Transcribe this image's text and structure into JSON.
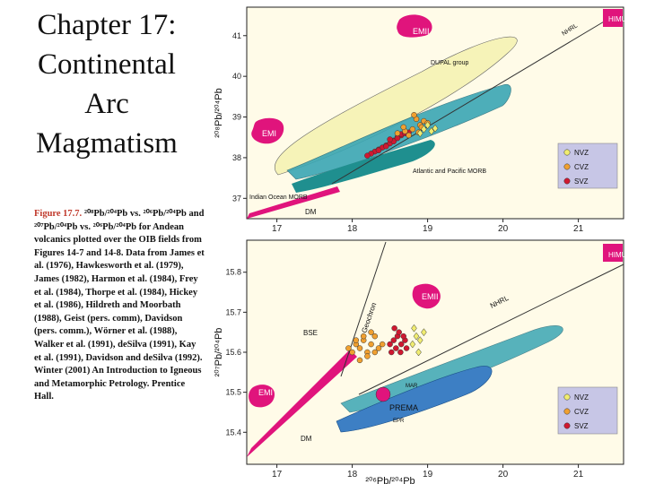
{
  "slide": {
    "title_lines": [
      "Chapter 17:",
      "Continental",
      "Arc",
      "Magmatism"
    ],
    "caption_lead": "Figure 17.7.",
    "caption_body": " ²⁰⁸Pb/²⁰⁴Pb vs. ²⁰⁶Pb/²⁰⁴Pb and ²⁰⁷Pb/²⁰⁴Pb vs. ²⁰⁶Pb/²⁰⁴Pb for Andean volcanics plotted over the OIB fields from Figures 14-7 and 14-8.  Data from James et al. (1976), Hawkesworth et al. (1979), James (1982), Harmon et al. (1984), Frey et al. (1984), Thorpe et al. (1984), Hickey et al. (1986), Hildreth and Moorbath (1988), Geist (pers. comm), Davidson (pers. comm.), Wörner et al. (1988), Walker et al. (1991), deSilva (1991), Kay et al. (1991), Davidson and deSilva (1992).  Winter (2001) An Introduction to Igneous and Metamorphic Petrology. Prentice Hall."
  },
  "colors": {
    "magenta": "#e0147c",
    "yellow_field": "#f6f3b8",
    "teal_field": "#3aa6b4",
    "dark_teal": "#1f8f8f",
    "blue_field": "#3d7fc4",
    "nvz": "#f0ec70",
    "cvz": "#f0a030",
    "svz": "#d01830",
    "legend_bg": "#c7c6e6"
  },
  "chart_data": [
    {
      "type": "scatter",
      "xlabel": "²⁰⁶Pb/²⁰⁴Pb",
      "ylabel": "²⁰⁸Pb/²⁰⁴Pb",
      "xlim": [
        16.6,
        21.6
      ],
      "ylim": [
        36.5,
        41.7
      ],
      "x_ticks": [
        "17",
        "18",
        "19",
        "20",
        "21"
      ],
      "y_ticks": [
        "37",
        "38",
        "39",
        "40",
        "41"
      ],
      "field_labels": [
        "EMII",
        "HIMU",
        "EMI",
        "DUPAL group",
        "NHRL",
        "Atlantic and Pacific MORB",
        "Indian Ocean MORB",
        "DM"
      ],
      "legend": [
        "NVZ",
        "CVZ",
        "SVZ"
      ],
      "series": [
        {
          "name": "SVZ",
          "marker": "red-circle",
          "x": [
            18.3,
            18.35,
            18.4,
            18.45,
            18.5,
            18.55,
            18.6,
            18.65,
            18.55,
            18.65,
            18.25,
            18.2,
            18.7,
            18.6,
            18.45,
            18.35,
            18.5,
            18.75
          ],
          "y": [
            38.15,
            38.2,
            38.25,
            38.3,
            38.35,
            38.42,
            38.5,
            38.55,
            38.4,
            38.58,
            38.1,
            38.05,
            38.6,
            38.48,
            38.28,
            38.18,
            38.45,
            38.62
          ]
        },
        {
          "name": "CVZ",
          "marker": "orange-circle",
          "x": [
            18.7,
            18.8,
            18.9,
            18.85,
            18.95,
            18.75,
            18.6,
            19.0,
            18.82,
            18.92,
            18.68,
            18.88
          ],
          "y": [
            38.65,
            38.7,
            38.8,
            38.95,
            38.9,
            38.55,
            38.6,
            38.85,
            39.05,
            38.75,
            38.75,
            38.62
          ]
        },
        {
          "name": "NVZ",
          "marker": "yellow-diamond",
          "x": [
            18.95,
            19.05,
            19.0,
            19.1,
            18.9
          ],
          "y": [
            38.7,
            38.65,
            38.8,
            38.72,
            38.6
          ]
        }
      ]
    },
    {
      "type": "scatter",
      "xlabel": "²⁰⁶Pb/²⁰⁴Pb",
      "ylabel": "²⁰⁷Pb/²⁰⁴Pb",
      "xlim": [
        16.6,
        21.6
      ],
      "ylim": [
        15.32,
        15.88
      ],
      "x_ticks": [
        "17",
        "18",
        "19",
        "20",
        "21"
      ],
      "y_ticks": [
        "15.4",
        "15.5",
        "15.6",
        "15.7",
        "15.8"
      ],
      "field_labels": [
        "HIMU",
        "Geochron",
        "EMII",
        "NHRL",
        "BSE",
        "EMI",
        "MAR",
        "PREMA",
        "EPR",
        "DM"
      ],
      "legend": [
        "NVZ",
        "CVZ",
        "SVZ"
      ],
      "series": [
        {
          "name": "CVZ",
          "marker": "orange-circle",
          "x": [
            18.0,
            18.05,
            18.1,
            18.15,
            18.2,
            18.25,
            18.3,
            18.35,
            18.1,
            18.2,
            18.3,
            18.4,
            17.95,
            18.15,
            18.25,
            18.05
          ],
          "y": [
            15.6,
            15.62,
            15.61,
            15.63,
            15.6,
            15.62,
            15.64,
            15.61,
            15.58,
            15.59,
            15.6,
            15.62,
            15.61,
            15.64,
            15.65,
            15.63
          ]
        },
        {
          "name": "SVZ",
          "marker": "red-circle",
          "x": [
            18.5,
            18.55,
            18.6,
            18.65,
            18.7,
            18.58,
            18.62,
            18.68,
            18.52,
            18.64,
            18.72,
            18.56
          ],
          "y": [
            15.62,
            15.63,
            15.64,
            15.62,
            15.63,
            15.61,
            15.65,
            15.64,
            15.6,
            15.6,
            15.61,
            15.66
          ]
        },
        {
          "name": "NVZ",
          "marker": "yellow-diamond",
          "x": [
            18.8,
            18.85,
            18.9,
            18.95,
            18.88,
            18.82
          ],
          "y": [
            15.62,
            15.64,
            15.63,
            15.65,
            15.6,
            15.66
          ]
        }
      ]
    }
  ]
}
